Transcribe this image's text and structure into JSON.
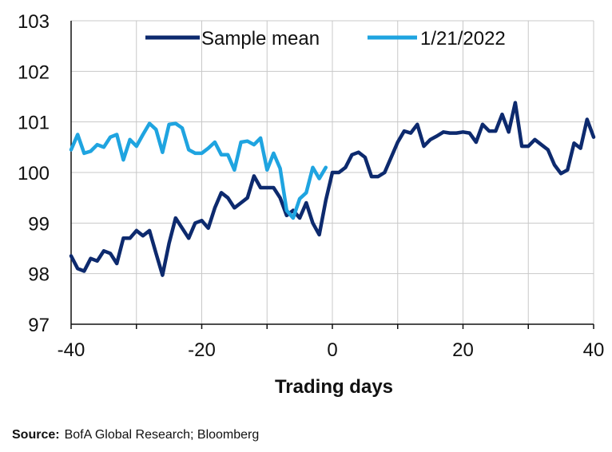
{
  "chart_data": {
    "type": "line",
    "title": "",
    "xlabel": "Trading days",
    "ylabel": "",
    "xlim": [
      -40,
      40
    ],
    "ylim": [
      97,
      103
    ],
    "xticks": [
      -40,
      -20,
      0,
      20,
      40
    ],
    "yticks": [
      97,
      98,
      99,
      100,
      101,
      102,
      103
    ],
    "xtick_labels": [
      "-40",
      "-20",
      "0",
      "20",
      "40"
    ],
    "ytick_labels": [
      "97",
      "98",
      "99",
      "100",
      "101",
      "102",
      "103"
    ],
    "grid": "horizontal and vertical",
    "legend_position": "top",
    "series": [
      {
        "name": "Sample mean",
        "color": "#0d2a6e",
        "x": [
          -40,
          -39,
          -38,
          -37,
          -36,
          -35,
          -34,
          -33,
          -32,
          -31,
          -30,
          -29,
          -28,
          -27,
          -26,
          -25,
          -24,
          -23,
          -22,
          -21,
          -20,
          -19,
          -18,
          -17,
          -16,
          -15,
          -14,
          -13,
          -12,
          -11,
          -10,
          -9,
          -8,
          -7,
          -6,
          -5,
          -4,
          -3,
          -2,
          -1,
          0,
          1,
          2,
          3,
          4,
          5,
          6,
          7,
          8,
          9,
          10,
          11,
          12,
          13,
          14,
          15,
          16,
          17,
          18,
          19,
          20,
          21,
          22,
          23,
          24,
          25,
          26,
          27,
          28,
          29,
          30,
          31,
          32,
          33,
          34,
          35,
          36,
          37,
          38,
          39,
          40
        ],
        "values": [
          98.35,
          98.1,
          98.05,
          98.3,
          98.25,
          98.45,
          98.4,
          98.2,
          98.7,
          98.7,
          98.85,
          98.75,
          98.85,
          98.4,
          97.97,
          98.6,
          99.1,
          98.9,
          98.7,
          99.0,
          99.05,
          98.9,
          99.3,
          99.6,
          99.5,
          99.3,
          99.4,
          99.5,
          99.93,
          99.7,
          99.7,
          99.7,
          99.5,
          99.15,
          99.25,
          99.1,
          99.4,
          99.0,
          98.77,
          99.45,
          100.0,
          100.0,
          100.1,
          100.35,
          100.4,
          100.3,
          99.92,
          99.92,
          100.0,
          100.3,
          100.6,
          100.82,
          100.78,
          100.95,
          100.52,
          100.65,
          100.72,
          100.8,
          100.78,
          100.78,
          100.8,
          100.78,
          100.6,
          100.95,
          100.82,
          100.82,
          101.15,
          100.8,
          101.38,
          100.52,
          100.52,
          100.65,
          100.55,
          100.45,
          100.15,
          99.98,
          100.05,
          100.58,
          100.48,
          101.05,
          100.7
        ]
      },
      {
        "name": "1/21/2022",
        "color": "#1fa4e0",
        "x": [
          -40,
          -39,
          -38,
          -37,
          -36,
          -35,
          -34,
          -33,
          -32,
          -31,
          -30,
          -29,
          -28,
          -27,
          -26,
          -25,
          -24,
          -23,
          -22,
          -21,
          -20,
          -19,
          -18,
          -17,
          -16,
          -15,
          -14,
          -13,
          -12,
          -11,
          -10,
          -9,
          -8,
          -7,
          -6,
          -5,
          -4,
          -3,
          -2,
          -1
        ],
        "values": [
          100.45,
          100.75,
          100.38,
          100.42,
          100.55,
          100.5,
          100.7,
          100.75,
          100.25,
          100.65,
          100.52,
          100.75,
          100.97,
          100.85,
          100.4,
          100.95,
          100.97,
          100.88,
          100.45,
          100.38,
          100.38,
          100.48,
          100.6,
          100.35,
          100.35,
          100.05,
          100.6,
          100.62,
          100.55,
          100.68,
          100.05,
          100.38,
          100.08,
          99.25,
          99.1,
          99.48,
          99.6,
          100.1,
          99.88,
          100.1
        ]
      }
    ]
  },
  "source": {
    "label": "Source:",
    "text": "BofA Global Research; Bloomberg"
  }
}
